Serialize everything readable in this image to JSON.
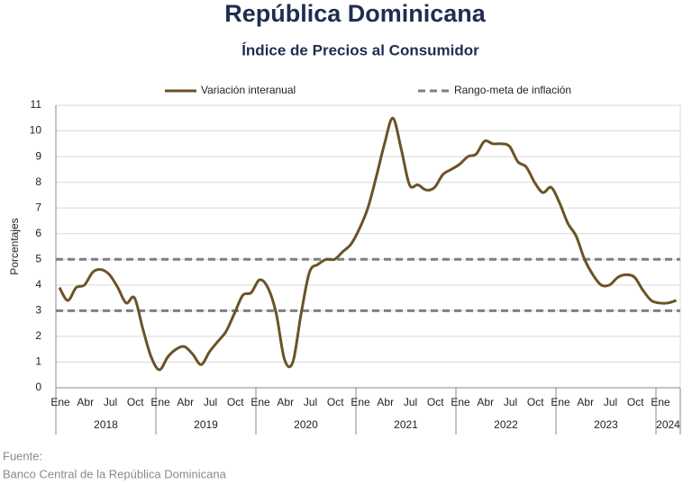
{
  "chart_data": {
    "type": "line",
    "title": "República Dominicana",
    "subtitle": "Índice de Precios al Consumidor",
    "y_label": "Porcentajes",
    "source_label": "Fuente:",
    "source": "Banco Central de la República Dominicana",
    "categories": [
      "Ene",
      null,
      null,
      "Abr",
      null,
      null,
      "Jul",
      null,
      null,
      "Oct",
      null,
      null,
      "Ene",
      null,
      null,
      "Abr",
      null,
      null,
      "Jul",
      null,
      null,
      "Oct",
      null,
      null,
      "Ene",
      null,
      null,
      "Abr",
      null,
      null,
      "Jul",
      null,
      null,
      "Oct",
      null,
      null,
      "Ene",
      null,
      null,
      "Abr",
      null,
      null,
      "Jul",
      null,
      null,
      "Oct",
      null,
      null,
      "Ene",
      null,
      null,
      "Abr",
      null,
      null,
      "Jul",
      null,
      null,
      "Oct",
      null,
      null,
      "Ene",
      null,
      null,
      "Abr",
      null,
      null,
      "Jul",
      null,
      null,
      "Oct",
      null,
      null,
      "Ene",
      null,
      null
    ],
    "years": [
      "2018",
      "2019",
      "2020",
      "2021",
      "2022",
      "2023",
      "2024"
    ],
    "series": [
      {
        "name": "Variación interanual",
        "color": "#6b5327",
        "values": [
          3.9,
          3.4,
          3.9,
          4.0,
          4.5,
          4.6,
          4.4,
          3.9,
          3.3,
          3.5,
          2.3,
          1.2,
          0.7,
          1.2,
          1.5,
          1.6,
          1.3,
          0.9,
          1.4,
          1.8,
          2.2,
          2.9,
          3.6,
          3.7,
          4.2,
          3.9,
          2.9,
          1.1,
          1.0,
          2.9,
          4.5,
          4.8,
          5.0,
          5.0,
          5.3,
          5.6,
          6.2,
          7.0,
          8.2,
          9.5,
          10.5,
          9.3,
          7.9,
          7.9,
          7.7,
          7.8,
          8.3,
          8.5,
          8.7,
          9.0,
          9.1,
          9.6,
          9.5,
          9.5,
          9.4,
          8.8,
          8.6,
          8.0,
          7.6,
          7.8,
          7.2,
          6.4,
          5.9,
          5.0,
          4.4,
          4.0,
          4.0,
          4.3,
          4.4,
          4.3,
          3.8,
          3.4,
          3.3,
          3.3,
          3.4
        ]
      }
    ],
    "reference_lines": {
      "name": "Rango-meta de inflación",
      "color": "#7f7f7f",
      "values": [
        3,
        5
      ]
    },
    "ylim": [
      0,
      11
    ],
    "yticks": [
      0,
      1,
      2,
      3,
      4,
      5,
      6,
      7,
      8,
      9,
      10,
      11
    ],
    "grid": true
  }
}
